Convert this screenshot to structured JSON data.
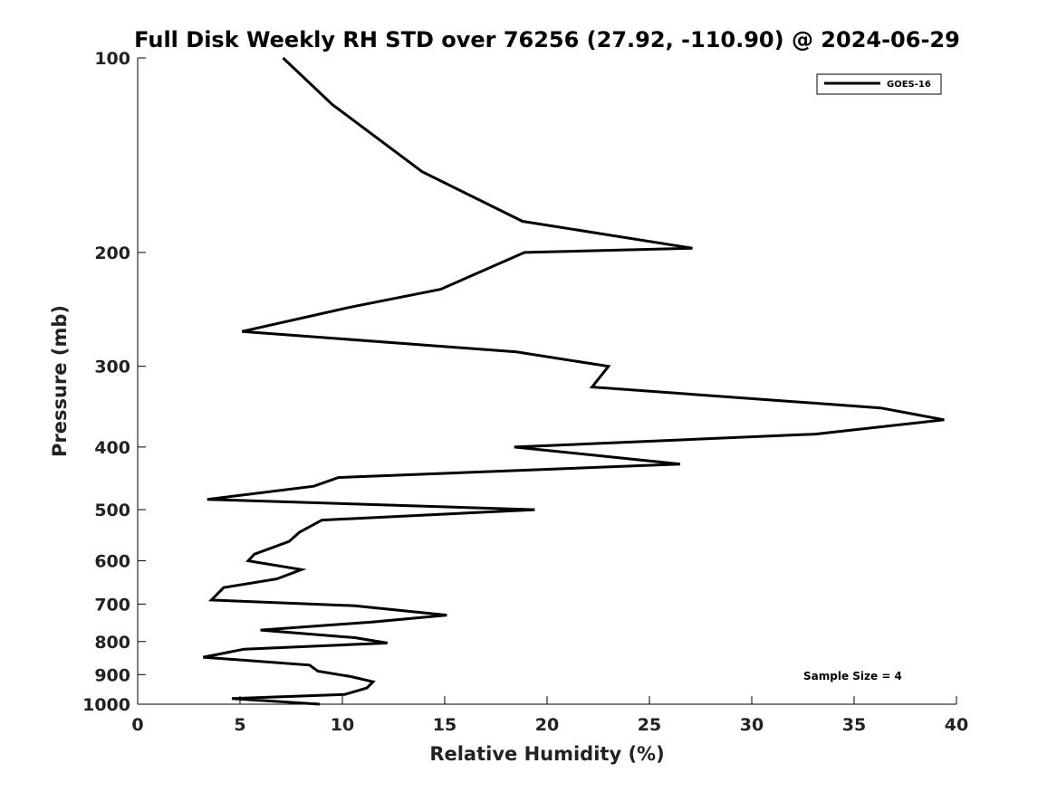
{
  "chart_data": {
    "type": "line",
    "title": "Full Disk Weekly RH STD over 76256 (27.92, -110.90) @ 2024-06-29",
    "xlabel": "Relative Humidity (%)",
    "ylabel": "Pressure (mb)",
    "xlim": [
      0,
      40
    ],
    "ylim": [
      100,
      1000
    ],
    "yscale": "log",
    "y_inverted": true,
    "x_ticks": [
      "0",
      "5",
      "10",
      "15",
      "20",
      "25",
      "30",
      "35",
      "40"
    ],
    "y_ticks": [
      "100",
      "200",
      "300",
      "400",
      "500",
      "600",
      "700",
      "800",
      "900",
      "1000"
    ],
    "grid": false,
    "legend_position": "top-right",
    "annotation": "Sample Size = 4",
    "series": [
      {
        "name": "GOES-16",
        "color": "#000000",
        "points": [
          [
            7.1,
            100
          ],
          [
            9.5,
            118
          ],
          [
            13.9,
            150
          ],
          [
            18.8,
            179
          ],
          [
            27.1,
            197
          ],
          [
            18.9,
            200
          ],
          [
            14.8,
            228
          ],
          [
            10.4,
            243
          ],
          [
            5.1,
            265
          ],
          [
            18.5,
            285
          ],
          [
            23.0,
            300
          ],
          [
            22.2,
            323
          ],
          [
            36.3,
            348
          ],
          [
            39.4,
            363
          ],
          [
            33.1,
            382
          ],
          [
            18.4,
            400
          ],
          [
            26.5,
            425
          ],
          [
            9.8,
            446
          ],
          [
            8.6,
            460
          ],
          [
            3.4,
            482
          ],
          [
            19.4,
            500
          ],
          [
            9.0,
            519
          ],
          [
            7.9,
            542
          ],
          [
            7.4,
            560
          ],
          [
            5.7,
            586
          ],
          [
            5.4,
            600
          ],
          [
            8.0,
            619
          ],
          [
            6.8,
            640
          ],
          [
            4.2,
            660
          ],
          [
            3.6,
            690
          ],
          [
            10.6,
            704
          ],
          [
            15.1,
            728
          ],
          [
            11.5,
            746
          ],
          [
            6.0,
            768
          ],
          [
            10.6,
            789
          ],
          [
            12.2,
            804
          ],
          [
            5.2,
            822
          ],
          [
            3.2,
            846
          ],
          [
            8.4,
            870
          ],
          [
            8.8,
            889
          ],
          [
            10.4,
            906
          ],
          [
            11.5,
            923
          ],
          [
            11.2,
            944
          ],
          [
            10.1,
            966
          ],
          [
            4.6,
            980
          ],
          [
            8.9,
            1000
          ]
        ]
      }
    ]
  }
}
